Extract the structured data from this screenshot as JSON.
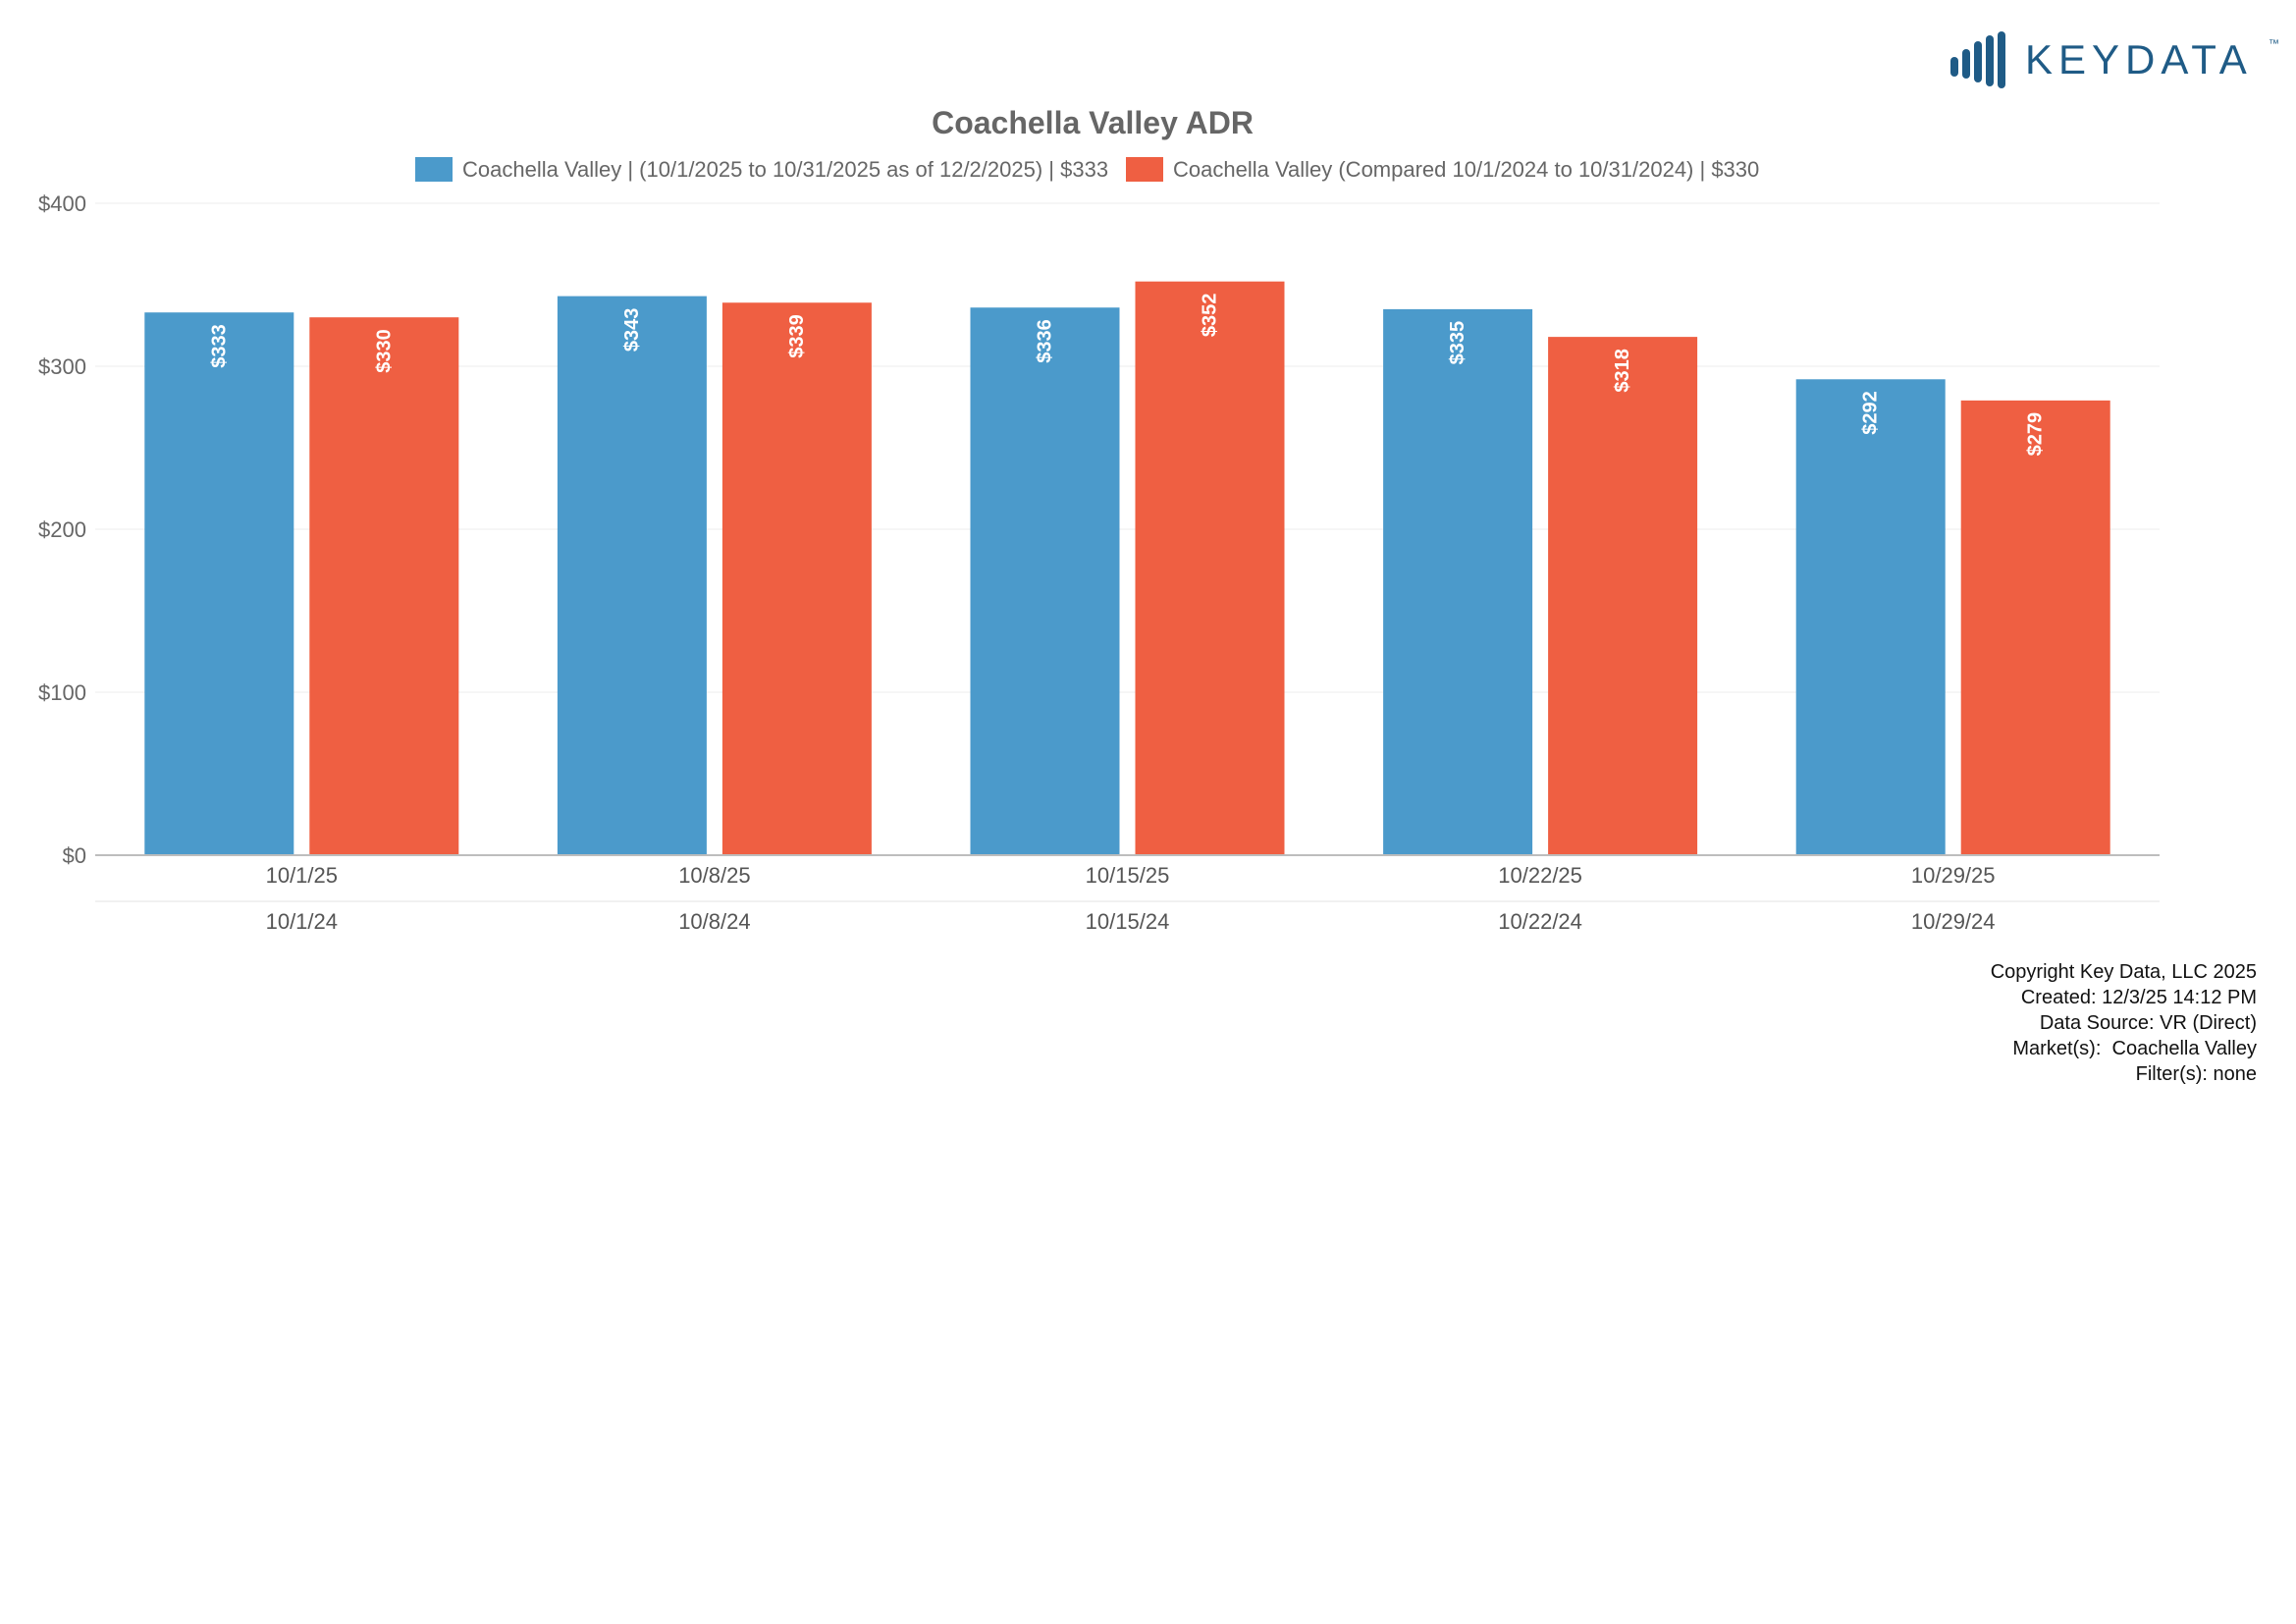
{
  "brand": {
    "name": "KEYDATA",
    "trademark": "™",
    "color": "#1f5b86",
    "icon": "bar-signal-icon"
  },
  "footer": {
    "copyright": "Copyright Key Data, LLC 2025",
    "created": "Created: 12/3/25 14:12 PM",
    "data_source": "Data Source: VR (Direct)",
    "markets": "Market(s):  Coachella Valley",
    "filters": "Filter(s): none"
  },
  "chart_data": {
    "type": "bar",
    "title": "Coachella Valley ADR",
    "xlabel": "",
    "ylabel": "",
    "ylim": [
      0,
      400
    ],
    "yticks": [
      0,
      100,
      200,
      300,
      400
    ],
    "ytick_labels": [
      "$0",
      "$100",
      "$200",
      "$300",
      "$400"
    ],
    "categories": [
      "10/1/25",
      "10/8/25",
      "10/15/25",
      "10/22/25",
      "10/29/25"
    ],
    "secondary_categories": [
      "10/1/24",
      "10/8/24",
      "10/15/24",
      "10/22/24",
      "10/29/24"
    ],
    "legend_position": "top",
    "grid": true,
    "series": [
      {
        "name": "Coachella Valley | (10/1/2025 to 10/31/2025 as of 12/2/2025) | $333",
        "color": "#4b9acb",
        "values": [
          333,
          343,
          336,
          335,
          292
        ],
        "labels": [
          "$333",
          "$343",
          "$336",
          "$335",
          "$292"
        ]
      },
      {
        "name": "Coachella Valley (Compared 10/1/2024 to 10/31/2024) | $330",
        "color": "#ef5f42",
        "values": [
          330,
          339,
          352,
          318,
          279
        ],
        "labels": [
          "$330",
          "$339",
          "$352",
          "$318",
          "$279"
        ]
      }
    ]
  }
}
